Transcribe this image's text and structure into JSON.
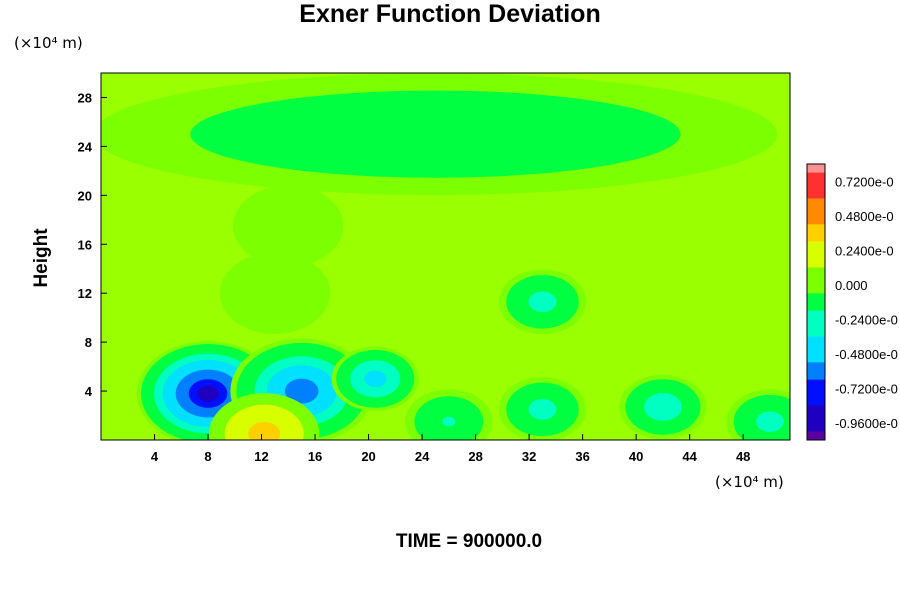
{
  "page": {
    "title": "Exner Function Deviation",
    "y_unit": "(×10⁴ m)",
    "x_unit": "(×10⁴ m)",
    "ylabel": "Height",
    "time_label": "TIME = 900000.0"
  },
  "chart_data": {
    "type": "heatmap",
    "title": "Exner Function Deviation",
    "xlabel": "",
    "ylabel": "Height",
    "x_ticks": [
      4,
      8,
      12,
      16,
      20,
      24,
      28,
      32,
      36,
      40,
      44,
      48
    ],
    "y_ticks": [
      4,
      8,
      12,
      16,
      20,
      24,
      28
    ],
    "xlim": [
      0,
      51.5
    ],
    "ylim": [
      0,
      30
    ],
    "colorbar": {
      "ticks": [
        "0.7200e-0",
        "0.4800e-0",
        "0.2400e-0",
        "0.000",
        "-0.2400e-0",
        "-0.4800e-0",
        "-0.7200e-0",
        "-0.9600e-0"
      ],
      "values": [
        0.72,
        0.48,
        0.24,
        0.0,
        -0.24,
        -0.48,
        -0.72,
        -0.96
      ],
      "range": [
        -1.08,
        0.84
      ],
      "colors": [
        "#ff9090",
        "#ff3030",
        "#ff8a00",
        "#ffd000",
        "#d8ff00",
        "#7cff00",
        "#00ff40",
        "#00ffc0",
        "#00e0ff",
        "#0080ff",
        "#0010ff",
        "#2000c0",
        "#5a00a0"
      ]
    },
    "features": [
      {
        "label": "low upper layer",
        "x": 25,
        "y": 25,
        "value": -0.17
      },
      {
        "label": "minimum",
        "x": 8,
        "y": 3.8,
        "value": -0.85
      },
      {
        "label": "minimum",
        "x": 15,
        "y": 4.0,
        "value": -0.62
      },
      {
        "label": "minimum",
        "x": 20.5,
        "y": 5,
        "value": -0.45
      },
      {
        "label": "minimum",
        "x": 33,
        "y": 11.3,
        "value": -0.28
      },
      {
        "label": "minimum",
        "x": 33,
        "y": 2.5,
        "value": -0.3
      },
      {
        "label": "minimum",
        "x": 42,
        "y": 2.7,
        "value": -0.33
      },
      {
        "label": "minimum",
        "x": 50,
        "y": 1.5,
        "value": -0.3
      },
      {
        "label": "minimum",
        "x": 26,
        "y": 1.5,
        "value": -0.25
      },
      {
        "label": "maximum",
        "x": 12.2,
        "y": 0.5,
        "value": 0.36
      },
      {
        "label": "maximum",
        "x": 13,
        "y": 12,
        "value": 0.06
      },
      {
        "label": "maximum",
        "x": 14,
        "y": 17.5,
        "value": 0.05
      }
    ]
  }
}
